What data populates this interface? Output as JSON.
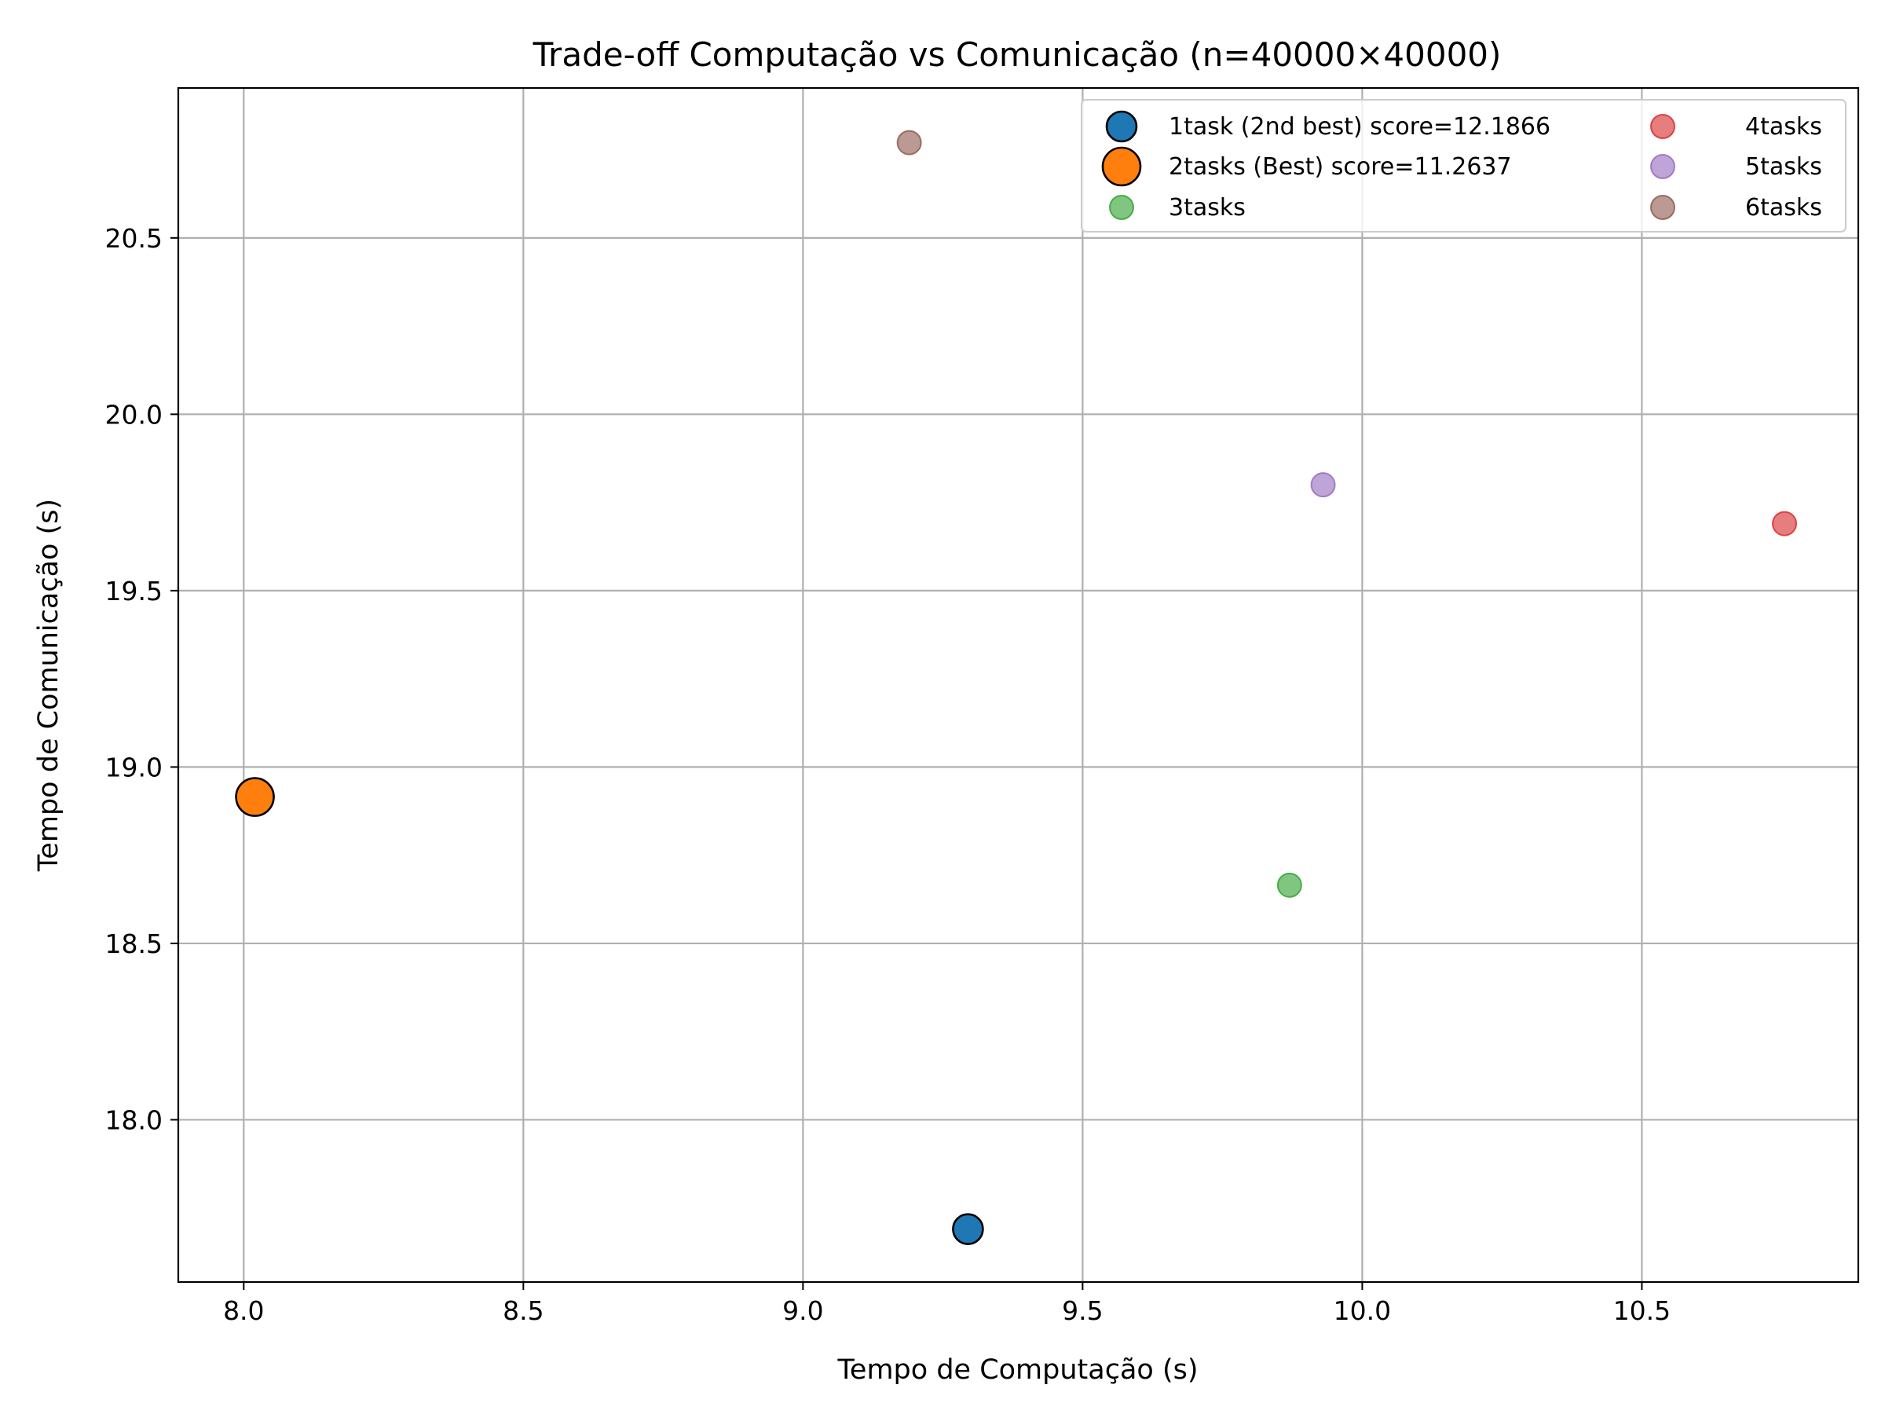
{
  "chart_data": {
    "type": "scatter",
    "title": "Trade-off Computação vs Comunicação (n=40000×40000)",
    "xlabel": "Tempo de Computação (s)",
    "ylabel": "Tempo de Comunicação (s)",
    "xlim": [
      7.883,
      10.887
    ],
    "ylim": [
      17.54,
      20.925
    ],
    "xticks": [
      8.0,
      8.5,
      9.0,
      9.5,
      10.0,
      10.5
    ],
    "xtick_labels": [
      "8.0",
      "8.5",
      "9.0",
      "9.5",
      "10.0",
      "10.5"
    ],
    "yticks": [
      18.0,
      18.5,
      19.0,
      19.5,
      20.0,
      20.5
    ],
    "ytick_labels": [
      "18.0",
      "18.5",
      "19.0",
      "19.5",
      "20.0",
      "20.5"
    ],
    "grid": true,
    "legend_position": "top-right",
    "legend_columns": 2,
    "series": [
      {
        "name": "1task (2nd best) score=12.1866",
        "x": 9.295,
        "y": 17.69,
        "color": "#1f77b4",
        "highlight": true,
        "size": "medium"
      },
      {
        "name": "2tasks (Best) score=11.2637",
        "x": 8.02,
        "y": 18.915,
        "color": "#ff7f0e",
        "highlight": true,
        "size": "large"
      },
      {
        "name": "3tasks",
        "x": 9.87,
        "y": 18.665,
        "color": "#2ca02c",
        "highlight": false,
        "size": "small"
      },
      {
        "name": "4tasks",
        "x": 10.755,
        "y": 19.69,
        "color": "#d62728",
        "highlight": false,
        "size": "small"
      },
      {
        "name": "5tasks",
        "x": 9.93,
        "y": 19.8,
        "color": "#9467bd",
        "highlight": false,
        "size": "small"
      },
      {
        "name": "6tasks",
        "x": 9.19,
        "y": 20.77,
        "color": "#8c564b",
        "highlight": false,
        "size": "small"
      }
    ]
  }
}
